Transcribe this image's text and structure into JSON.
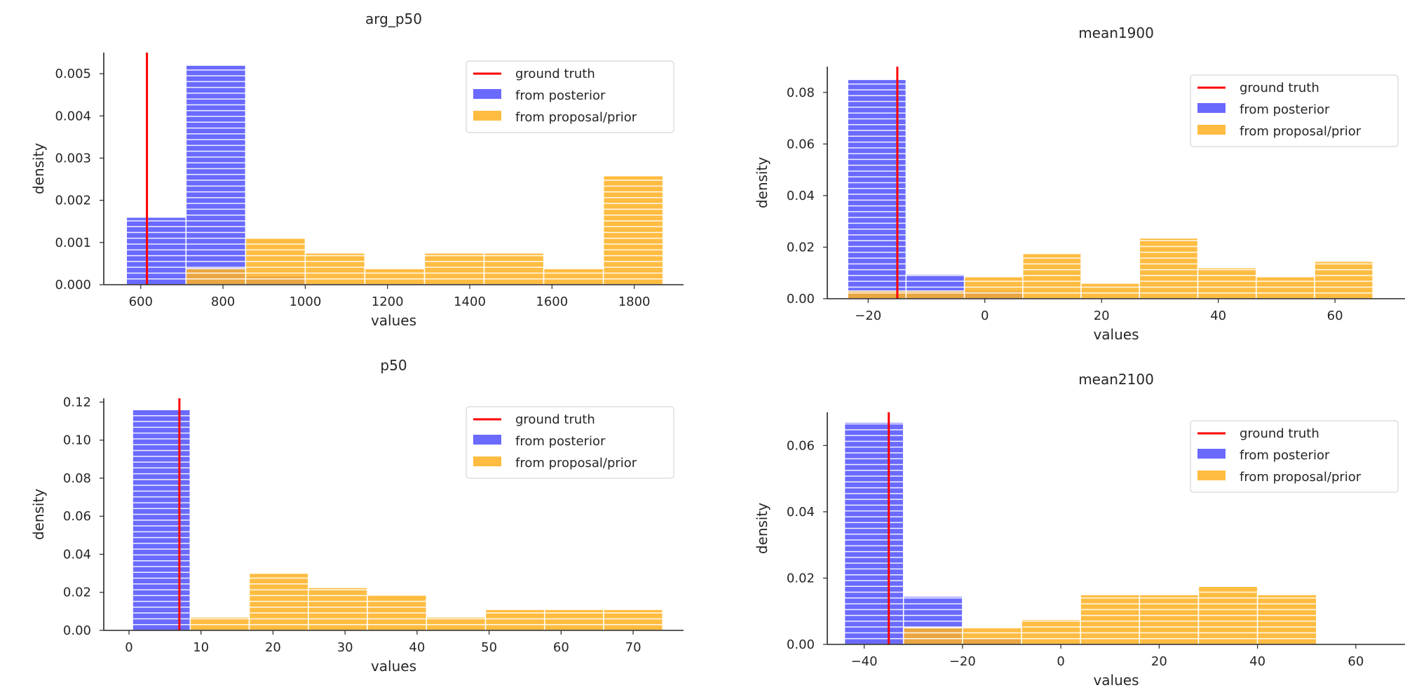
{
  "colors": {
    "ground_truth": "#ff0000",
    "posterior": "#5a5aff",
    "proposal": "#ffb020",
    "axis": "#262626",
    "legend_border": "#cccccc"
  },
  "chart_data": [
    {
      "type": "bar",
      "title": "arg_p50",
      "xlabel": "values",
      "ylabel": "density",
      "xlim": [
        510,
        1920
      ],
      "ylim": [
        0,
        0.0055
      ],
      "xticks": [
        600,
        800,
        1000,
        1200,
        1400,
        1600,
        1800
      ],
      "xticklabels": [
        "600",
        "800",
        "1000",
        "1200",
        "1400",
        "1600",
        "1800"
      ],
      "yticks": [
        0,
        0.001,
        0.002,
        0.003,
        0.004,
        0.005
      ],
      "yticklabels": [
        "0.000",
        "0.001",
        "0.002",
        "0.003",
        "0.004",
        "0.005"
      ],
      "ground_truth": 615,
      "legend": {
        "placement": "top-right",
        "entries": [
          "ground truth",
          "from posterior",
          "from proposal/prior"
        ]
      },
      "series": [
        {
          "name": "from posterior",
          "bins": [
            [
              565,
              710,
              0.0016
            ],
            [
              710,
              855,
              0.0052
            ],
            [
              855,
              1000,
              0.0002
            ]
          ]
        },
        {
          "name": "from proposal/prior",
          "bins": [
            [
              710,
              855,
              0.00038
            ],
            [
              855,
              1000,
              0.0011
            ],
            [
              1000,
              1145,
              0.00075
            ],
            [
              1145,
              1290,
              0.00038
            ],
            [
              1290,
              1435,
              0.00075
            ],
            [
              1435,
              1580,
              0.00075
            ],
            [
              1580,
              1725,
              0.00038
            ],
            [
              1725,
              1870,
              0.00258
            ]
          ]
        }
      ]
    },
    {
      "type": "bar",
      "title": "mean1900",
      "xlabel": "values",
      "ylabel": "density",
      "xlim": [
        -27,
        72
      ],
      "ylim": [
        0,
        0.09
      ],
      "xticks": [
        -20,
        0,
        20,
        40,
        60
      ],
      "xticklabels": [
        "−20",
        "0",
        "20",
        "40",
        "60"
      ],
      "yticks": [
        0,
        0.02,
        0.04,
        0.06,
        0.08
      ],
      "yticklabels": [
        "0.00",
        "0.02",
        "0.04",
        "0.06",
        "0.08"
      ],
      "ground_truth": -15,
      "legend": {
        "placement": "top-right",
        "entries": [
          "ground truth",
          "from posterior",
          "from proposal/prior"
        ]
      },
      "series": [
        {
          "name": "from posterior",
          "bins": [
            [
              -23.5,
              -13.5,
              0.085
            ],
            [
              -13.5,
              -3.5,
              0.0095
            ],
            [
              -3.5,
              6.5,
              0.003
            ]
          ]
        },
        {
          "name": "from proposal/prior",
          "bins": [
            [
              -23.5,
              -13.5,
              0.003
            ],
            [
              -13.5,
              -3.5,
              0.003
            ],
            [
              -3.5,
              6.5,
              0.0085
            ],
            [
              6.5,
              16.5,
              0.0175
            ],
            [
              16.5,
              26.5,
              0.006
            ],
            [
              26.5,
              36.5,
              0.0235
            ],
            [
              36.5,
              46.5,
              0.012
            ],
            [
              46.5,
              56.5,
              0.0085
            ],
            [
              56.5,
              66.5,
              0.0145
            ]
          ]
        }
      ]
    },
    {
      "type": "bar",
      "title": "p50",
      "xlabel": "values",
      "ylabel": "density",
      "xlim": [
        -3.5,
        77
      ],
      "ylim": [
        0,
        0.122
      ],
      "xticks": [
        0,
        10,
        20,
        30,
        40,
        50,
        60,
        70
      ],
      "xticklabels": [
        "0",
        "10",
        "20",
        "30",
        "40",
        "50",
        "60",
        "70"
      ],
      "yticks": [
        0,
        0.02,
        0.04,
        0.06,
        0.08,
        0.1,
        0.12
      ],
      "yticklabels": [
        "0.00",
        "0.02",
        "0.04",
        "0.06",
        "0.08",
        "0.10",
        "0.12"
      ],
      "ground_truth": 7,
      "legend": {
        "placement": "top-right",
        "entries": [
          "ground truth",
          "from posterior",
          "from proposal/prior"
        ]
      },
      "series": [
        {
          "name": "from posterior",
          "bins": [
            [
              0.5,
              8.5,
              0.116
            ]
          ]
        },
        {
          "name": "from proposal/prior",
          "bins": [
            [
              8.5,
              16.7,
              0.007
            ],
            [
              16.7,
              24.9,
              0.03
            ],
            [
              24.9,
              33.1,
              0.0225
            ],
            [
              33.1,
              41.3,
              0.0185
            ],
            [
              41.3,
              49.5,
              0.007
            ],
            [
              49.5,
              57.7,
              0.011
            ],
            [
              57.7,
              65.9,
              0.011
            ],
            [
              65.9,
              74.1,
              0.011
            ]
          ]
        }
      ]
    },
    {
      "type": "bar",
      "title": "mean2100",
      "xlabel": "values",
      "ylabel": "density",
      "xlim": [
        -47.5,
        70
      ],
      "ylim": [
        0,
        0.07
      ],
      "xticks": [
        -40,
        -20,
        0,
        20,
        40,
        60
      ],
      "xticklabels": [
        "−40",
        "−20",
        "0",
        "20",
        "40",
        "60"
      ],
      "yticks": [
        0,
        0.02,
        0.04,
        0.06
      ],
      "yticklabels": [
        "0.00",
        "0.02",
        "0.04",
        "0.06"
      ],
      "ground_truth": -35,
      "legend": {
        "placement": "top-right",
        "entries": [
          "ground truth",
          "from posterior",
          "from proposal/prior"
        ]
      },
      "series": [
        {
          "name": "from posterior",
          "bins": [
            [
              -44,
              -32,
              0.067
            ],
            [
              -32,
              -20,
              0.0145
            ],
            [
              -20,
              -8,
              0.002
            ]
          ]
        },
        {
          "name": "from proposal/prior",
          "bins": [
            [
              -32,
              -20,
              0.005
            ],
            [
              -20,
              -8,
              0.005
            ],
            [
              -8,
              4,
              0.0075
            ],
            [
              4,
              16,
              0.015
            ],
            [
              16,
              28,
              0.015
            ],
            [
              28,
              40,
              0.0175
            ],
            [
              40,
              52,
              0.015
            ]
          ]
        }
      ]
    }
  ]
}
